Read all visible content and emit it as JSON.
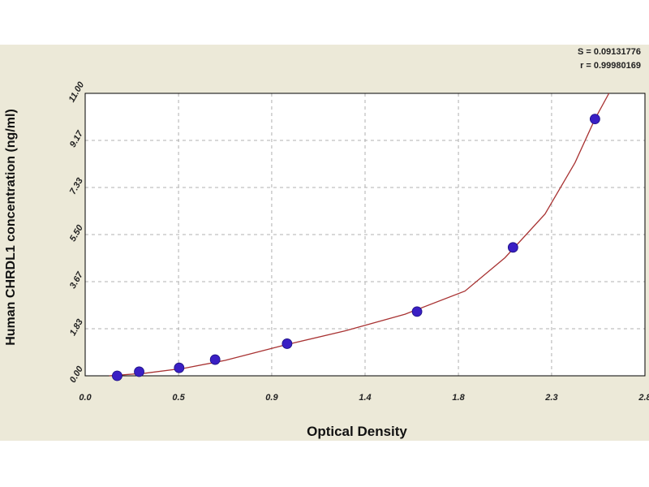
{
  "chart_data": {
    "type": "scatter",
    "xlabel": "Optical Density",
    "ylabel": "Human CHRDL1 concentration (ng/ml)",
    "xlim": [
      0.0,
      2.8
    ],
    "ylim": [
      0.0,
      11.0
    ],
    "x_ticks": [
      "0.0",
      "0.5",
      "0.9",
      "1.4",
      "1.8",
      "2.3",
      "2.8"
    ],
    "x_tick_values": [
      0.0,
      0.467,
      0.933,
      1.4,
      1.867,
      2.333,
      2.8
    ],
    "y_ticks": [
      "0.00",
      "1.83",
      "3.67",
      "5.50",
      "7.33",
      "9.17",
      "11.00"
    ],
    "y_tick_values": [
      0.0,
      1.833,
      3.667,
      5.5,
      7.333,
      9.167,
      11.0
    ],
    "grid": true,
    "stats": [
      "S = 0.09131776",
      "r = 0.99980169"
    ],
    "points": [
      {
        "x": 0.16,
        "y": 0.0
      },
      {
        "x": 0.27,
        "y": 0.16
      },
      {
        "x": 0.47,
        "y": 0.31
      },
      {
        "x": 0.65,
        "y": 0.63
      },
      {
        "x": 1.01,
        "y": 1.25
      },
      {
        "x": 1.66,
        "y": 2.5
      },
      {
        "x": 2.14,
        "y": 5.0
      },
      {
        "x": 2.55,
        "y": 10.0
      }
    ],
    "fit_curve": [
      [
        0.12,
        0.0
      ],
      [
        0.3,
        0.1
      ],
      [
        0.5,
        0.3
      ],
      [
        0.7,
        0.6
      ],
      [
        1.0,
        1.2
      ],
      [
        1.3,
        1.75
      ],
      [
        1.6,
        2.4
      ],
      [
        1.9,
        3.3
      ],
      [
        2.1,
        4.6
      ],
      [
        2.3,
        6.3
      ],
      [
        2.45,
        8.3
      ],
      [
        2.55,
        10.0
      ],
      [
        2.62,
        11.0
      ]
    ],
    "colors": {
      "frame_bg": "#ece9d8",
      "plot_bg": "#ffffff",
      "curve": "#a83232",
      "point": "#3a1fc4",
      "grid": "#b0b0b0"
    }
  }
}
